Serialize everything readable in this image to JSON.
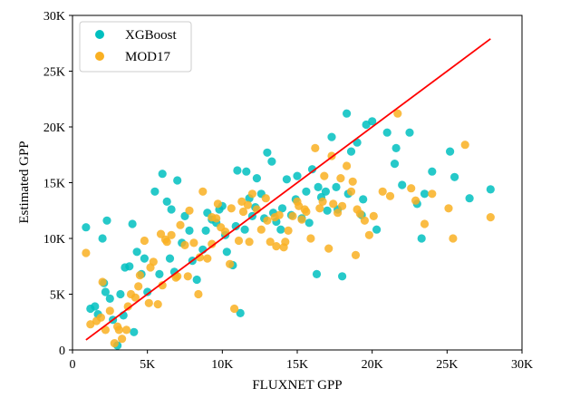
{
  "chart_data": {
    "type": "scatter",
    "xlabel": "FLUXNET GPP",
    "ylabel": "Estimated GPP",
    "xlim": [
      0,
      30000
    ],
    "ylim": [
      0,
      30000
    ],
    "xticks": [
      0,
      5000,
      10000,
      15000,
      20000,
      25000,
      30000
    ],
    "xtick_labels": [
      "0",
      "5K",
      "10K",
      "15K",
      "20K",
      "25K",
      "30K"
    ],
    "yticks": [
      0,
      5000,
      10000,
      15000,
      20000,
      25000,
      30000
    ],
    "ytick_labels": [
      "0",
      "5K",
      "10K",
      "15K",
      "20K",
      "25K",
      "30K"
    ],
    "grid": false,
    "legend_position": "top-left",
    "reference_line": {
      "x": [
        900,
        27900
      ],
      "y": [
        900,
        27900
      ],
      "color": "#ff0000"
    },
    "series": [
      {
        "name": "XGBoost",
        "color": "#00bfbf",
        "x": [
          900,
          1200,
          1500,
          1700,
          2000,
          2200,
          2300,
          2500,
          3000,
          3200,
          3400,
          3800,
          4000,
          4300,
          4600,
          5000,
          5500,
          6000,
          6300,
          6600,
          7000,
          7500,
          7800,
          8000,
          8300,
          8700,
          9000,
          9300,
          9600,
          10000,
          10300,
          10700,
          11000,
          11200,
          11500,
          11800,
          12000,
          12300,
          12600,
          13000,
          13300,
          13600,
          14000,
          14300,
          14600,
          15000,
          15300,
          15600,
          16000,
          16300,
          16600,
          17000,
          17300,
          17600,
          18000,
          18300,
          18600,
          19000,
          19300,
          19600,
          20000,
          20300,
          21000,
          21500,
          22000,
          22500,
          23000,
          23500,
          24000,
          25200,
          26500,
          27900,
          2100,
          4100,
          5800,
          6800,
          9800,
          11600,
          12800,
          14900,
          16900,
          19400,
          2700,
          3500,
          6500,
          8900,
          10900,
          12200,
          13900,
          15800,
          17700,
          18400,
          21600,
          23300,
          25500,
          4800,
          7300,
          10200,
          13400,
          16400
        ],
        "y": [
          11000,
          3700,
          3900,
          3200,
          10000,
          5200,
          11600,
          4600,
          400,
          5000,
          3100,
          7500,
          11300,
          8800,
          6800,
          5200,
          14200,
          15800,
          13300,
          12600,
          15200,
          12000,
          10700,
          8000,
          6300,
          9000,
          12300,
          11700,
          11400,
          12900,
          8800,
          7600,
          16100,
          3300,
          10800,
          13600,
          12000,
          15400,
          14000,
          17700,
          16900,
          11500,
          12700,
          15300,
          12100,
          15600,
          11800,
          14200,
          16200,
          6800,
          13700,
          12500,
          19100,
          14600,
          6600,
          21200,
          17800,
          18600,
          12100,
          20200,
          20500,
          10800,
          19500,
          16700,
          14800,
          19500,
          13100,
          14000,
          16000,
          17800,
          13600,
          14400,
          6000,
          1600,
          6800,
          7000,
          12600,
          16000,
          11800,
          13500,
          14200,
          13500,
          2700,
          7400,
          8200,
          10700,
          11100,
          12800,
          10800,
          11400,
          12600,
          14000,
          18100,
          10000,
          15500,
          8200,
          9600,
          10300,
          12300,
          14600
        ]
      },
      {
        "name": "MOD17",
        "color": "#f9b022",
        "x": [
          900,
          1200,
          1600,
          1900,
          2200,
          2500,
          2800,
          3000,
          3300,
          3600,
          3900,
          4200,
          4500,
          4800,
          5100,
          5400,
          5700,
          6000,
          6300,
          6600,
          6900,
          7200,
          7500,
          7800,
          8100,
          8400,
          8700,
          9000,
          9300,
          9600,
          9900,
          10200,
          10500,
          10800,
          11100,
          11400,
          11700,
          12000,
          12300,
          12600,
          12900,
          13200,
          13500,
          13800,
          14100,
          14400,
          14700,
          15000,
          15300,
          15600,
          15900,
          16200,
          16500,
          16800,
          17100,
          17400,
          17700,
          18000,
          18300,
          18600,
          18900,
          19200,
          19500,
          19800,
          20100,
          21200,
          21700,
          22600,
          23500,
          24000,
          25400,
          26200,
          27900,
          2000,
          3100,
          4400,
          5200,
          6200,
          7000,
          8500,
          9300,
          10600,
          11800,
          13000,
          14200,
          15500,
          16700,
          17900,
          19000,
          20700,
          22900,
          25100,
          3700,
          5900,
          7700,
          9700,
          11300,
          13600,
          15100,
          17300,
          18700
        ],
        "y": [
          8700,
          2300,
          2600,
          2900,
          1800,
          3500,
          600,
          2100,
          1000,
          1800,
          5000,
          4700,
          6700,
          9800,
          4200,
          7900,
          4100,
          5800,
          9700,
          10300,
          6500,
          11200,
          9400,
          12500,
          9600,
          5000,
          14200,
          8200,
          9500,
          11800,
          11000,
          10600,
          7700,
          3700,
          9800,
          12400,
          13000,
          14000,
          12600,
          10800,
          13600,
          9700,
          11900,
          12100,
          9200,
          10700,
          12000,
          13300,
          11700,
          12400,
          10000,
          18100,
          12700,
          15600,
          9100,
          13100,
          12300,
          12900,
          16500,
          14200,
          8500,
          12200,
          11600,
          10300,
          12000,
          13800,
          21200,
          14500,
          11300,
          14000,
          10000,
          18400,
          11900,
          6100,
          1800,
          5700,
          7400,
          9900,
          6600,
          8300,
          11900,
          12700,
          9700,
          11600,
          9700,
          12600,
          13300,
          15400,
          12600,
          14200,
          13400,
          12700,
          3900,
          10400,
          6600,
          13100,
          13300,
          9300,
          12900,
          17400,
          15100
        ]
      }
    ]
  }
}
